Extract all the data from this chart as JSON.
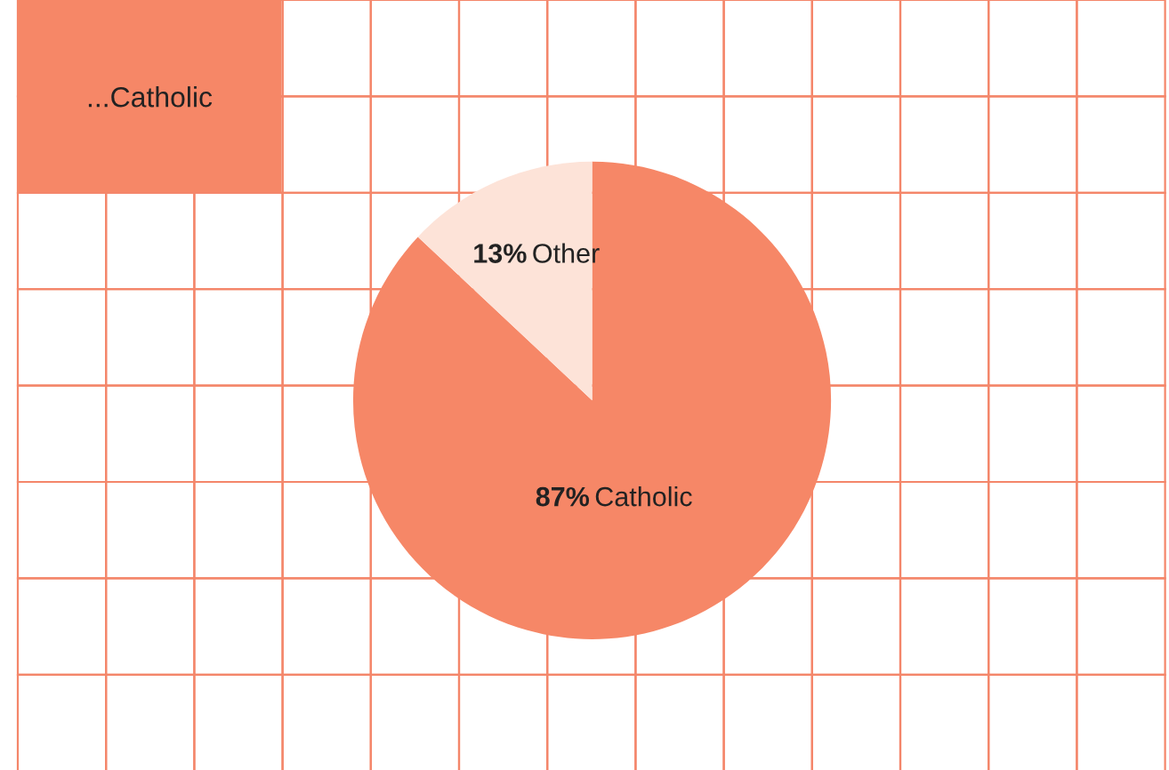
{
  "chart_data": {
    "type": "pie",
    "title": "...Catholic",
    "categories": [
      "Catholic",
      "Other"
    ],
    "values": [
      87,
      13
    ],
    "colors": [
      "#f68767",
      "#fde3d8"
    ],
    "value_labels": [
      "87%",
      "13%"
    ]
  }
}
